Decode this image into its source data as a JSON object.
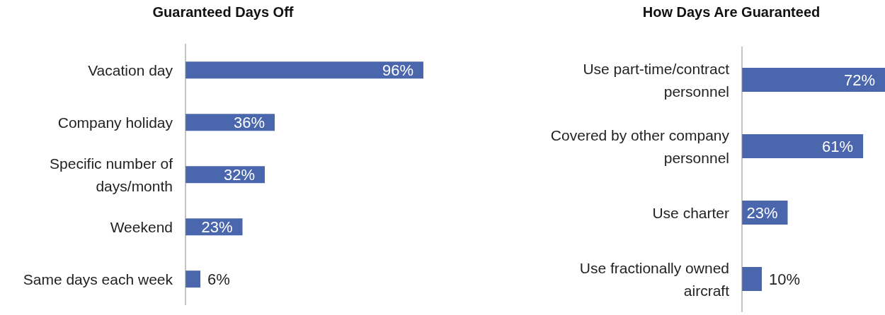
{
  "chart_data": [
    {
      "type": "bar",
      "orientation": "horizontal",
      "title": "Guaranteed Days Off",
      "categories": [
        "Vacation day",
        "Company holiday",
        "Specific number of days/month",
        "Weekend",
        "Same days each week"
      ],
      "values": [
        96,
        36,
        32,
        23,
        6
      ],
      "value_labels": [
        "96%",
        "36%",
        "32%",
        "23%",
        "6%"
      ],
      "color": "#4a66ac"
    },
    {
      "type": "bar",
      "orientation": "horizontal",
      "title": "How Days Are Guaranteed",
      "categories": [
        "Use part-time/contract personnel",
        "Covered by other company personnel",
        "Use charter",
        "Use fractionally owned aircraft"
      ],
      "values": [
        72,
        61,
        23,
        10
      ],
      "value_labels": [
        "72%",
        "61%",
        "23%",
        "10%"
      ],
      "color": "#4a66ac"
    }
  ]
}
